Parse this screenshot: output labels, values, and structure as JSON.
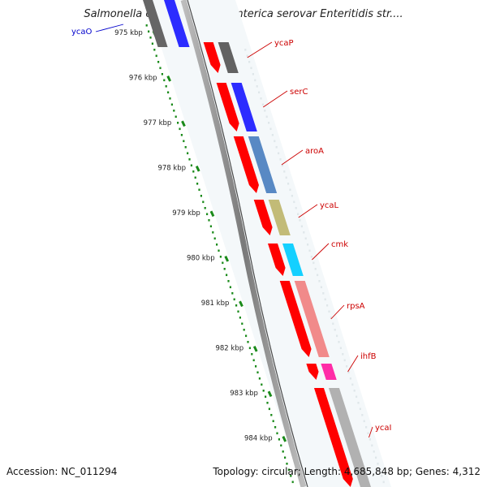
{
  "title": "Salmonella enterica subsp. enterica serovar Enteritidis str....",
  "footer": {
    "accession": "Accession: NC_011294",
    "info": "Topology: circular; Length: 4,685,848 bp; Genes: 4,312"
  },
  "ticks": [
    "975 kbp",
    "976 kbp",
    "977 kbp",
    "978 kbp",
    "979 kbp",
    "980 kbp",
    "981 kbp",
    "982 kbp",
    "983 kbp",
    "984 kbp"
  ],
  "colors": {
    "tick": "#1a8a1a",
    "backbone": "#8a8a8a",
    "cds_forward": "#ff0000",
    "label_red": "#cc0000",
    "label_blue": "#0000cc"
  },
  "genes": [
    {
      "name": "ycaO",
      "color": "#1a1aff",
      "label_color": "#0000cc"
    },
    {
      "name": "ycaP",
      "color": "#555555",
      "label_color": "#cc0000"
    },
    {
      "name": "serC",
      "color": "#1a1aff",
      "label_color": "#cc0000"
    },
    {
      "name": "aroA",
      "color": "#4a7fbf",
      "label_color": "#cc0000"
    },
    {
      "name": "ycaL",
      "color": "#bdb56b",
      "label_color": "#cc0000"
    },
    {
      "name": "cmk",
      "color": "#00ccff",
      "label_color": "#cc0000"
    },
    {
      "name": "rpsA",
      "color": "#f08080",
      "label_color": "#cc0000"
    },
    {
      "name": "ihfB",
      "color": "#ff1aa0",
      "label_color": "#cc0000"
    },
    {
      "name": "ycaI",
      "color": "#aaaaaa",
      "label_color": "#cc0000"
    }
  ]
}
